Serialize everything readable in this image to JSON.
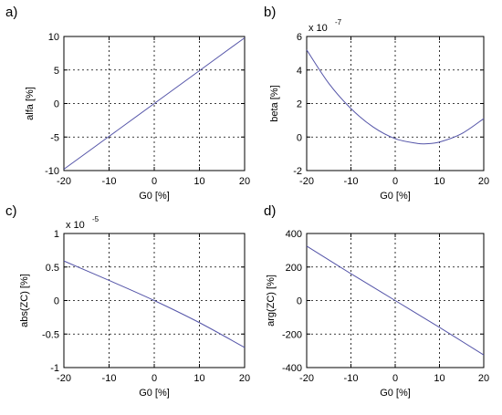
{
  "chart_data": [
    {
      "type": "line",
      "panel_label": "a)",
      "xlabel": "G0 [%]",
      "ylabel": "alfa [%]",
      "multiplier": null,
      "xlim": [
        -20,
        20
      ],
      "ylim": [
        -10,
        10
      ],
      "xticks": [
        "-20",
        "-10",
        "0",
        "10",
        "20"
      ],
      "yticks": [
        "-10",
        "-5",
        "0",
        "5",
        "10"
      ],
      "grid": true,
      "series": [
        {
          "color": "#5454a8",
          "x": [
            -20,
            -10,
            0,
            10,
            20
          ],
          "y": [
            -9.8,
            -4.9,
            0,
            4.9,
            9.8
          ]
        }
      ]
    },
    {
      "type": "line",
      "panel_label": "b)",
      "xlabel": "G0 [%]",
      "ylabel": "beta [%]",
      "multiplier": {
        "base": "x 10",
        "exp": "-7"
      },
      "xlim": [
        -20,
        20
      ],
      "ylim": [
        -2,
        6
      ],
      "xticks": [
        "-20",
        "-10",
        "0",
        "10",
        "20"
      ],
      "yticks": [
        "-2",
        "0",
        "2",
        "4",
        "6"
      ],
      "grid": true,
      "series": [
        {
          "color": "#5454a8",
          "x": [
            -20,
            -15,
            -10,
            -5,
            0,
            5,
            7,
            10,
            15,
            20
          ],
          "y": [
            5.2,
            3.2,
            1.7,
            0.6,
            -0.1,
            -0.38,
            -0.4,
            -0.3,
            0.2,
            1.1
          ]
        }
      ]
    },
    {
      "type": "line",
      "panel_label": "c)",
      "xlabel": "G0 [%]",
      "ylabel": "abs(ZC) [%]",
      "multiplier": {
        "base": "x 10",
        "exp": "-5"
      },
      "xlim": [
        -20,
        20
      ],
      "ylim": [
        -1,
        1
      ],
      "xticks": [
        "-20",
        "-10",
        "0",
        "10",
        "20"
      ],
      "yticks": [
        "-1",
        "-0.5",
        "0",
        "0.5",
        "1"
      ],
      "grid": true,
      "series": [
        {
          "color": "#5454a8",
          "x": [
            -20,
            -10,
            0,
            10,
            20
          ],
          "y": [
            0.59,
            0.3,
            0,
            -0.33,
            -0.7
          ]
        }
      ]
    },
    {
      "type": "line",
      "panel_label": "d)",
      "xlabel": "G0 [%]",
      "ylabel": "arg(ZC) [%]",
      "multiplier": null,
      "xlim": [
        -20,
        20
      ],
      "ylim": [
        -400,
        400
      ],
      "xticks": [
        "-20",
        "-10",
        "0",
        "10",
        "20"
      ],
      "yticks": [
        "-400",
        "-200",
        "0",
        "200",
        "400"
      ],
      "grid": true,
      "series": [
        {
          "color": "#5454a8",
          "x": [
            -20,
            -10,
            0,
            10,
            20
          ],
          "y": [
            325,
            160,
            0,
            -160,
            -325
          ]
        }
      ]
    }
  ]
}
